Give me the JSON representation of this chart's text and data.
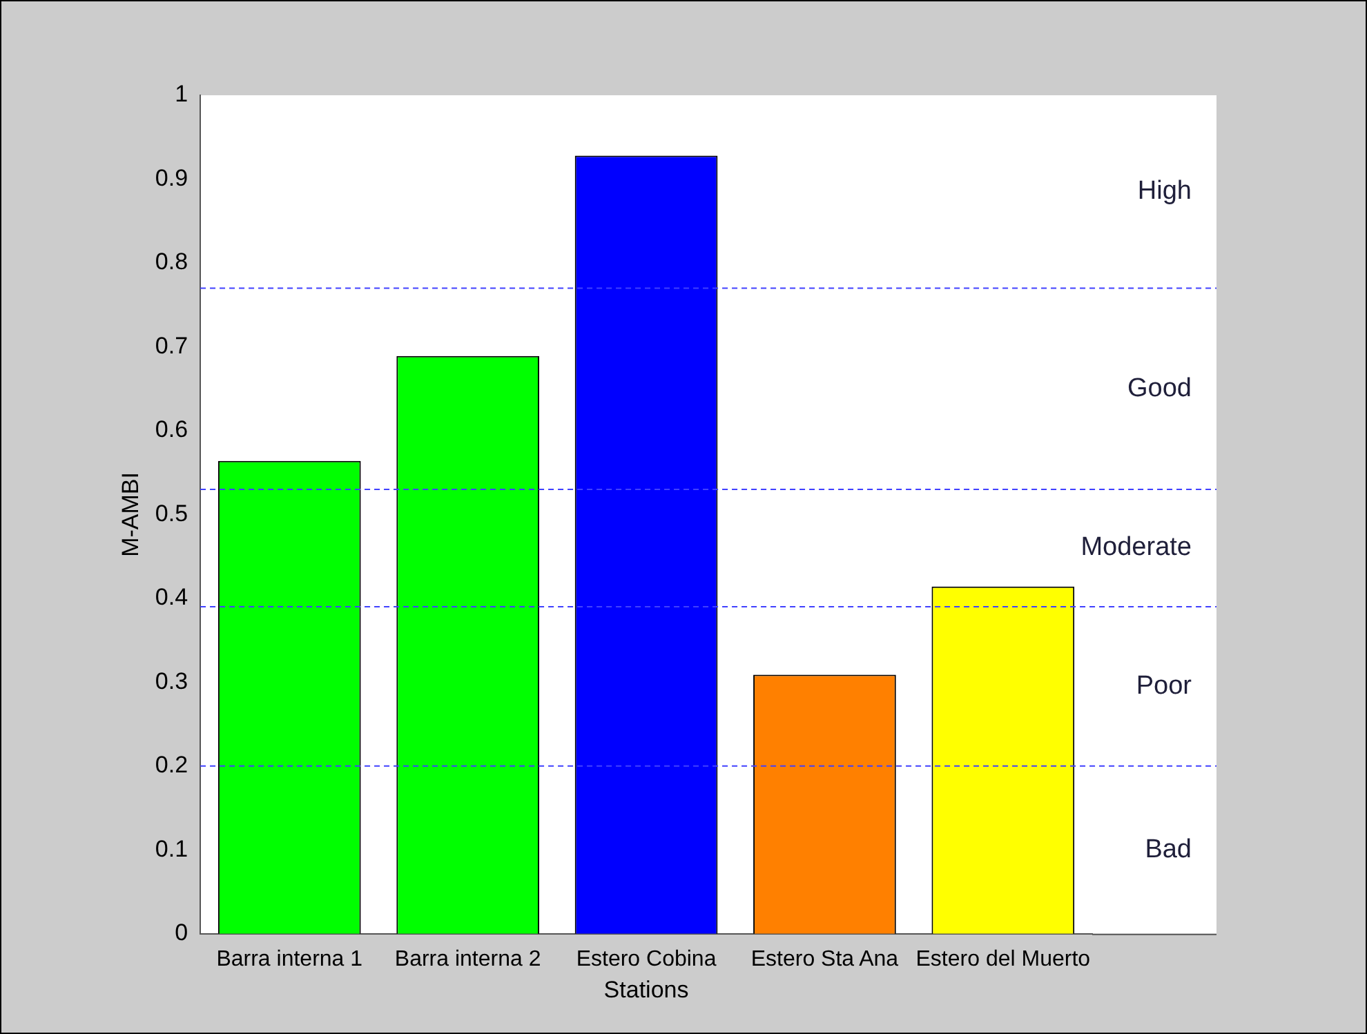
{
  "chart_data": {
    "type": "bar",
    "xlabel": "Stations",
    "ylabel": "M-AMBI",
    "categories": [
      "Barra interna 1",
      "Barra interna 2",
      "Estero Cobina",
      "Estero Sta Ana",
      "Estero del Muerto"
    ],
    "values": [
      0.564,
      0.689,
      0.928,
      0.309,
      0.414
    ],
    "colors": [
      "#00ff00",
      "#00ff00",
      "#0000ff",
      "#ff8000",
      "#ffff00"
    ],
    "ylim": [
      0,
      1
    ],
    "yticks": [
      0,
      0.1,
      0.2,
      0.3,
      0.4,
      0.5,
      0.6,
      0.7,
      0.8,
      0.9,
      1
    ],
    "grid": false,
    "legend": false,
    "ref_lines": [
      {
        "axis": "y",
        "value": 0.77,
        "color": "#4040ff",
        "line_style": "dashed"
      },
      {
        "axis": "y",
        "value": 0.53,
        "color": "#4040ff",
        "line_style": "dashed"
      },
      {
        "axis": "y",
        "value": 0.39,
        "color": "#4040ff",
        "line_style": "dashed"
      },
      {
        "axis": "y",
        "value": 0.2,
        "color": "#4040ff",
        "line_style": "dashed"
      }
    ],
    "annotations": [
      "High",
      "Good",
      "Moderate",
      "Poor",
      "Bad"
    ]
  }
}
